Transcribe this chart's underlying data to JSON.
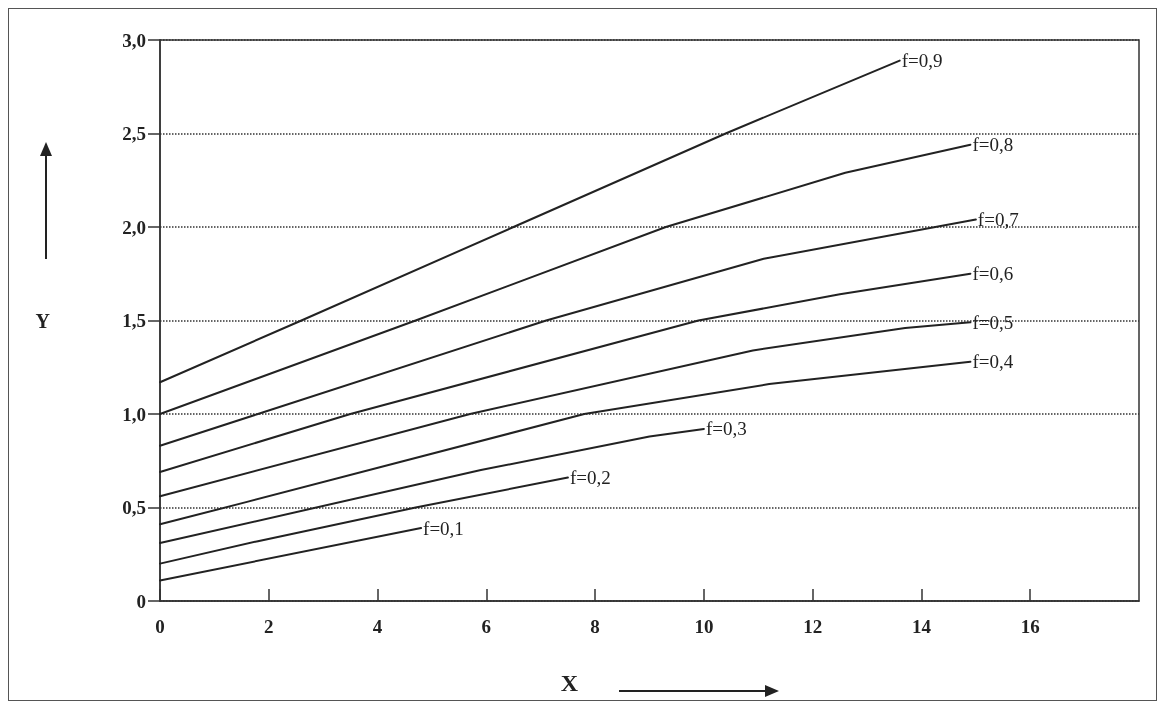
{
  "chart_data": {
    "type": "line",
    "xlabel": "X",
    "ylabel": "Y",
    "xlim": [
      0,
      18
    ],
    "xticks": [
      0,
      2,
      4,
      6,
      8,
      10,
      12,
      14,
      16
    ],
    "ylim": [
      0,
      3
    ],
    "yticks": [
      0,
      {
        "value": 0.5,
        "label": "0,5"
      },
      {
        "value": 1,
        "label": "1,0"
      },
      {
        "value": 1.5,
        "label": "1,5"
      },
      {
        "value": 2,
        "label": "2,0"
      },
      {
        "value": 2.5,
        "label": "2,5"
      },
      {
        "value": 3,
        "label": "3,0"
      }
    ],
    "grid": "y",
    "legend": false,
    "marker": "none",
    "line_style": "solid",
    "series": [
      {
        "name": "f=0,1",
        "color": "#222222",
        "x": [
          0,
          4.8
        ],
        "values": [
          0.11,
          0.39
        ]
      },
      {
        "name": "f=0,2",
        "color": "#222222",
        "x": [
          0,
          1.8,
          4.7,
          7.5
        ],
        "values": [
          0.2,
          0.32,
          0.5,
          0.66
        ]
      },
      {
        "name": "f=0,3",
        "color": "#222222",
        "x": [
          0,
          5.9,
          9,
          10
        ],
        "values": [
          0.31,
          0.7,
          0.88,
          0.92
        ]
      },
      {
        "name": "f=0,4",
        "color": "#222222",
        "x": [
          0,
          1.6,
          7.8,
          11.2,
          14.9
        ],
        "values": [
          0.41,
          0.53,
          1.0,
          1.16,
          1.28
        ]
      },
      {
        "name": "f=0,5",
        "color": "#222222",
        "x": [
          0,
          5.7,
          10.9,
          13.7,
          14.9
        ],
        "values": [
          0.56,
          1.0,
          1.34,
          1.46,
          1.49
        ]
      },
      {
        "name": "f=0,6",
        "color": "#222222",
        "x": [
          0,
          3.5,
          9.9,
          12.5,
          14.9
        ],
        "values": [
          0.69,
          1.0,
          1.5,
          1.64,
          1.75
        ]
      },
      {
        "name": "f=0,7",
        "color": "#222222",
        "x": [
          0,
          1.8,
          7.1,
          11.1,
          15
        ],
        "values": [
          0.83,
          1.0,
          1.5,
          1.83,
          2.04
        ]
      },
      {
        "name": "f=0,8",
        "color": "#222222",
        "x": [
          0,
          4.7,
          9.3,
          12.6,
          14.9
        ],
        "values": [
          1.0,
          1.5,
          2.0,
          2.29,
          2.44
        ]
      },
      {
        "name": "f=0,9",
        "color": "#222222",
        "x": [
          0,
          2.6,
          6.5,
          10.4,
          13.6
        ],
        "values": [
          1.17,
          1.5,
          2.0,
          2.5,
          2.89
        ]
      }
    ]
  }
}
